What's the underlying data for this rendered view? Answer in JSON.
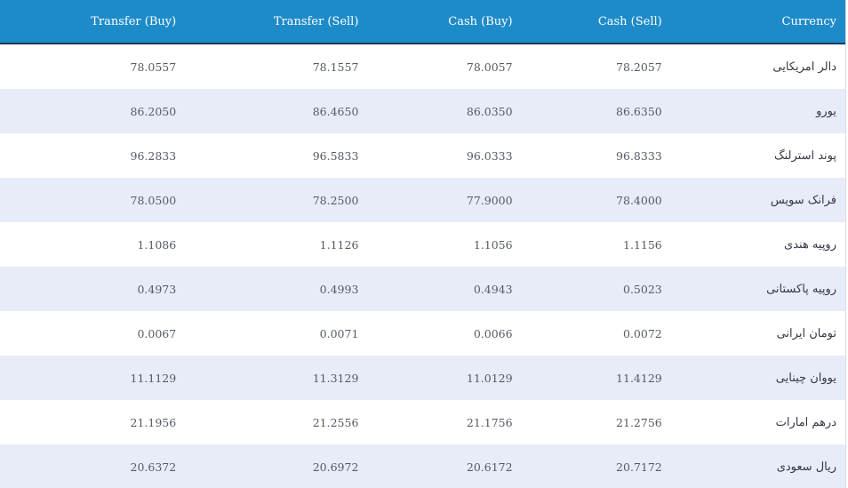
{
  "header": {
    "transfer_buy": "Transfer (Buy)",
    "transfer_sell": "Transfer (Sell)",
    "cash_buy": "Cash (Buy)",
    "cash_sell": "Cash (Sell)",
    "currency": "Currency"
  },
  "colors": {
    "header_bg": "#1e8bc9",
    "header_border": "#1b3b57",
    "row_alt": "#e8ebf8",
    "row": "#ffffff"
  },
  "rows": [
    {
      "transfer_buy": "78.0557",
      "transfer_sell": "78.1557",
      "cash_buy": "78.0057",
      "cash_sell": "78.2057",
      "currency": "دالر امریکایی"
    },
    {
      "transfer_buy": "86.2050",
      "transfer_sell": "86.4650",
      "cash_buy": "86.0350",
      "cash_sell": "86.6350",
      "currency": "یورو"
    },
    {
      "transfer_buy": "96.2833",
      "transfer_sell": "96.5833",
      "cash_buy": "96.0333",
      "cash_sell": "96.8333",
      "currency": "پوند استرلنگ"
    },
    {
      "transfer_buy": "78.0500",
      "transfer_sell": "78.2500",
      "cash_buy": "77.9000",
      "cash_sell": "78.4000",
      "currency": "فرانک سویس"
    },
    {
      "transfer_buy": "1.1086",
      "transfer_sell": "1.1126",
      "cash_buy": "1.1056",
      "cash_sell": "1.1156",
      "currency": "روپیه هندی"
    },
    {
      "transfer_buy": "0.4973",
      "transfer_sell": "0.4993",
      "cash_buy": "0.4943",
      "cash_sell": "0.5023",
      "currency": "روپیه پاکستانی"
    },
    {
      "transfer_buy": "0.0067",
      "transfer_sell": "0.0071",
      "cash_buy": "0.0066",
      "cash_sell": "0.0072",
      "currency": "تومان ایرانی"
    },
    {
      "transfer_buy": "11.1129",
      "transfer_sell": "11.3129",
      "cash_buy": "11.0129",
      "cash_sell": "11.4129",
      "currency": "یووان چینایی"
    },
    {
      "transfer_buy": "21.1956",
      "transfer_sell": "21.2556",
      "cash_buy": "21.1756",
      "cash_sell": "21.2756",
      "currency": "درهم امارات"
    },
    {
      "transfer_buy": "20.6372",
      "transfer_sell": "20.6972",
      "cash_buy": "20.6172",
      "cash_sell": "20.7172",
      "currency": "ریال سعودی"
    }
  ]
}
